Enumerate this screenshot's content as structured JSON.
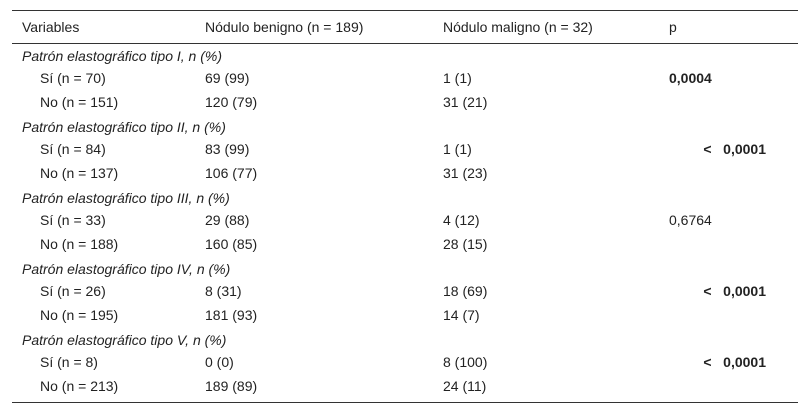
{
  "table": {
    "header": [
      "Variables",
      "Nódulo benigno (n = 189)",
      "Nódulo maligno (n = 32)",
      "p"
    ],
    "sections": [
      {
        "title": "Patrón elastográfico tipo I, n (%)",
        "p_bold": true,
        "rows": [
          {
            "label": "Sí (n = 70)",
            "benign": "69 (99)",
            "malignant": "1 (1)",
            "p": "0,0004"
          },
          {
            "label": "No (n = 151)",
            "benign": "120 (79)",
            "malignant": "31 (21)"
          }
        ]
      },
      {
        "title": "Patrón elastográfico tipo II, n (%)",
        "p_bold": true,
        "rows": [
          {
            "label": "Sí (n = 84)",
            "benign": "83 (99)",
            "malignant": "1 (1)",
            "p": "<   0,0001"
          },
          {
            "label": "No (n = 137)",
            "benign": "106 (77)",
            "malignant": "31 (23)"
          }
        ]
      },
      {
        "title": "Patrón elastográfico tipo III, n (%)",
        "p_bold": false,
        "rows": [
          {
            "label": "Sí (n = 33)",
            "benign": "29 (88)",
            "malignant": "4 (12)",
            "p": "0,6764"
          },
          {
            "label": "No (n = 188)",
            "benign": "160 (85)",
            "malignant": "28 (15)"
          }
        ]
      },
      {
        "title": "Patrón elastográfico tipo IV, n (%)",
        "p_bold": true,
        "rows": [
          {
            "label": "Sí (n = 26)",
            "benign": "8 (31)",
            "malignant": "18 (69)",
            "p": "<   0,0001"
          },
          {
            "label": "No (n = 195)",
            "benign": "181 (93)",
            "malignant": "14 (7)"
          }
        ]
      },
      {
        "title": "Patrón elastográfico tipo V, n (%)",
        "p_bold": true,
        "rows": [
          {
            "label": "Sí (n = 8)",
            "benign": "0 (0)",
            "malignant": "8 (100)",
            "p": "<   0,0001"
          },
          {
            "label": "No (n = 213)",
            "benign": "189 (89)",
            "malignant": "24 (11)"
          }
        ]
      }
    ]
  }
}
